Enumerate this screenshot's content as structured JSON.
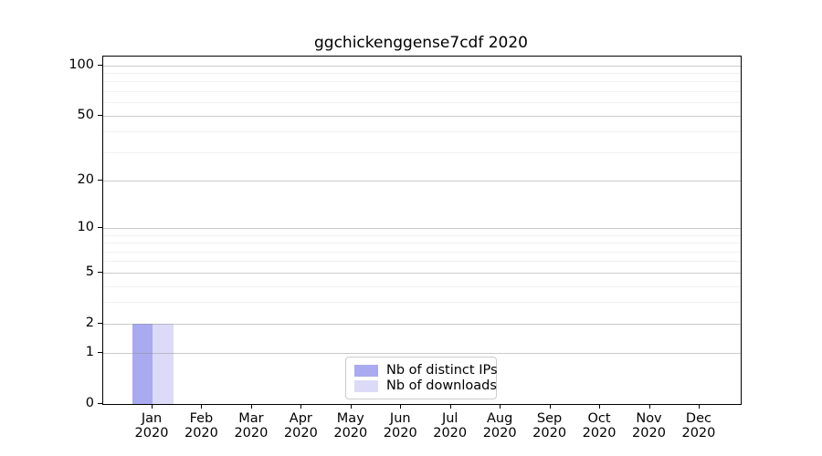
{
  "chart_data": {
    "type": "bar",
    "title": "ggchickenggense7cdf 2020",
    "year_label": "2020",
    "categories": [
      "Jan",
      "Feb",
      "Mar",
      "Apr",
      "May",
      "Jun",
      "Jul",
      "Aug",
      "Sep",
      "Oct",
      "Nov",
      "Dec"
    ],
    "series": [
      {
        "name": "Nb of distinct IPs",
        "color": "#aaaaf0",
        "values": [
          2,
          0,
          0,
          0,
          0,
          0,
          0,
          0,
          0,
          0,
          0,
          0
        ]
      },
      {
        "name": "Nb of downloads",
        "color": "#dbdbf8",
        "values": [
          2,
          0,
          0,
          0,
          0,
          0,
          0,
          0,
          0,
          0,
          0,
          0
        ]
      }
    ],
    "yscale": "log1p",
    "ylim": [
      0,
      113
    ],
    "y_ticks": [
      0,
      1,
      2,
      5,
      10,
      20,
      50,
      100
    ],
    "y_minor_ticks": [
      3,
      4,
      6,
      7,
      8,
      9,
      30,
      40,
      60,
      70,
      80,
      90
    ],
    "grid": "horizontal",
    "legend_position": "lower center",
    "xlabel": "",
    "ylabel": ""
  }
}
